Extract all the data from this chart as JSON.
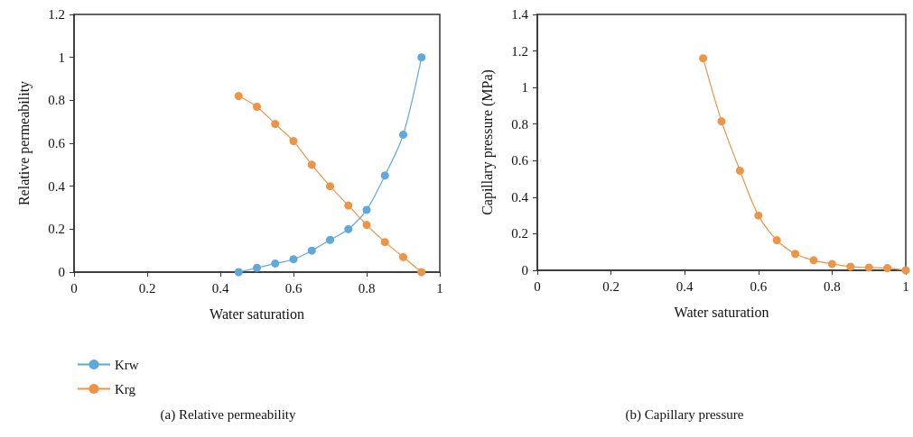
{
  "chart_data": [
    {
      "type": "line",
      "xlabel": "Water saturation",
      "ylabel": "Relative permeability",
      "annotations": [
        "(a) Relative permeability"
      ],
      "x": [
        0.45,
        0.5,
        0.55,
        0.6,
        0.65,
        0.7,
        0.75,
        0.8,
        0.85,
        0.9,
        0.95
      ],
      "series": [
        {
          "name": "Krw",
          "color": "#5fa8dc",
          "values": [
            0,
            0.02,
            0.04,
            0.06,
            0.1,
            0.15,
            0.2,
            0.29,
            0.45,
            0.64,
            1.0
          ]
        },
        {
          "name": "Krg",
          "color": "#ec9546",
          "values": [
            0.82,
            0.77,
            0.69,
            0.61,
            0.5,
            0.4,
            0.31,
            0.22,
            0.14,
            0.07,
            0
          ]
        }
      ],
      "xlim": [
        0,
        1
      ],
      "xticks": [
        0,
        0.2,
        0.4,
        0.6,
        0.8,
        1
      ],
      "ylim": [
        0,
        1.2
      ],
      "yticks": [
        0,
        0.2,
        0.4,
        0.6,
        0.8,
        1,
        1.2
      ],
      "grid": false,
      "legend": "bottom left",
      "marker": "circle",
      "line_style": "solid"
    },
    {
      "type": "line",
      "xlabel": "Water saturation",
      "ylabel": "Capillary pressure (MPa)",
      "annotations": [
        "(b) Capillary pressure"
      ],
      "x": [
        0.45,
        0.5,
        0.55,
        0.6,
        0.65,
        0.7,
        0.75,
        0.8,
        0.85,
        0.9,
        0.95,
        1.0
      ],
      "series": [
        {
          "color": "#ec9546",
          "values": [
            1.16,
            0.815,
            0.545,
            0.3,
            0.165,
            0.09,
            0.055,
            0.035,
            0.02,
            0.015,
            0.012,
            0
          ]
        }
      ],
      "xlim": [
        0,
        1
      ],
      "xticks": [
        0,
        0.2,
        0.4,
        0.6,
        0.8,
        1
      ],
      "ylim": [
        0,
        1.4
      ],
      "yticks": [
        0,
        0.2,
        0.4,
        0.6,
        0.8,
        1,
        1.2,
        1.4
      ],
      "grid": false,
      "legend": false,
      "marker": "circle",
      "line_style": "solid"
    }
  ]
}
